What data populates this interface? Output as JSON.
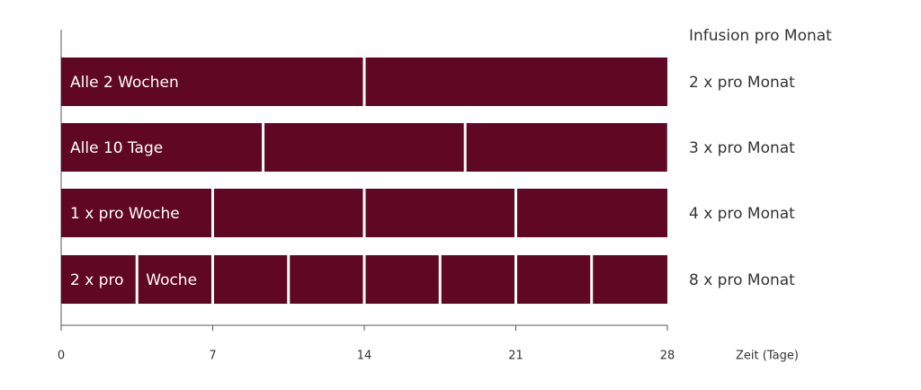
{
  "chart_data": {
    "type": "bar",
    "orientation": "horizontal",
    "stacked": true,
    "color": "#600724",
    "right_header": "Infusion pro Monat",
    "x_label": "Zeit (Tage)",
    "xlim": [
      0,
      28
    ],
    "xticks": [
      0,
      7,
      14,
      21,
      28
    ],
    "rows": [
      {
        "labels": [
          "Alle 2 Wochen"
        ],
        "segments": [
          14,
          14
        ],
        "rate": "2 x pro Monat"
      },
      {
        "labels": [
          "Alle 10 Tage"
        ],
        "segments": [
          9.33,
          9.33,
          9.33
        ],
        "rate": "3 x pro Monat"
      },
      {
        "labels": [
          "1 x pro Woche"
        ],
        "segments": [
          7,
          7,
          7,
          7
        ],
        "rate": "4 x pro Monat"
      },
      {
        "labels": [
          "2 x pro",
          "Woche"
        ],
        "segments": [
          3.5,
          3.5,
          3.5,
          3.5,
          3.5,
          3.5,
          3.5,
          3.5
        ],
        "rate": "8 x pro Monat"
      }
    ]
  }
}
